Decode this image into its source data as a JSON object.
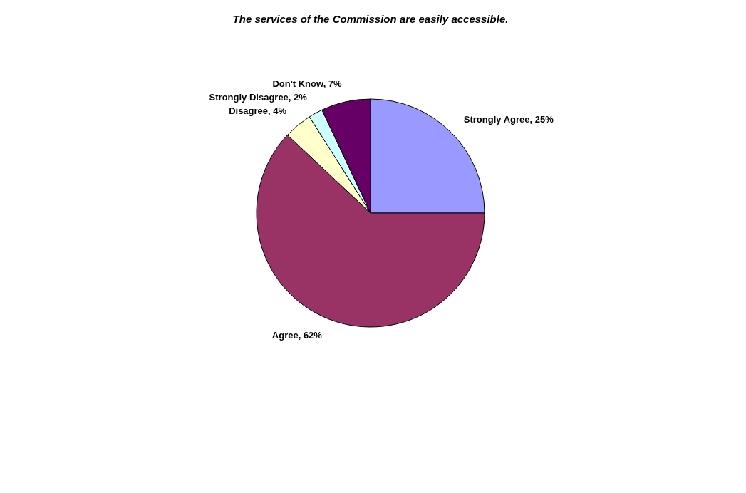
{
  "chart_data": {
    "type": "pie",
    "title": "The services of the Commission are easily accessible.",
    "categories": [
      "Strongly Agree",
      "Agree",
      "Disagree",
      "Strongly Disagree",
      "Don't Know"
    ],
    "values": [
      25,
      62,
      4,
      2,
      7
    ],
    "value_labels": [
      "25%",
      "62%",
      "4%",
      "2%",
      "7%"
    ],
    "colors": [
      "#9999ff",
      "#993366",
      "#ffffcc",
      "#ccffff",
      "#660066"
    ],
    "legend": false
  }
}
